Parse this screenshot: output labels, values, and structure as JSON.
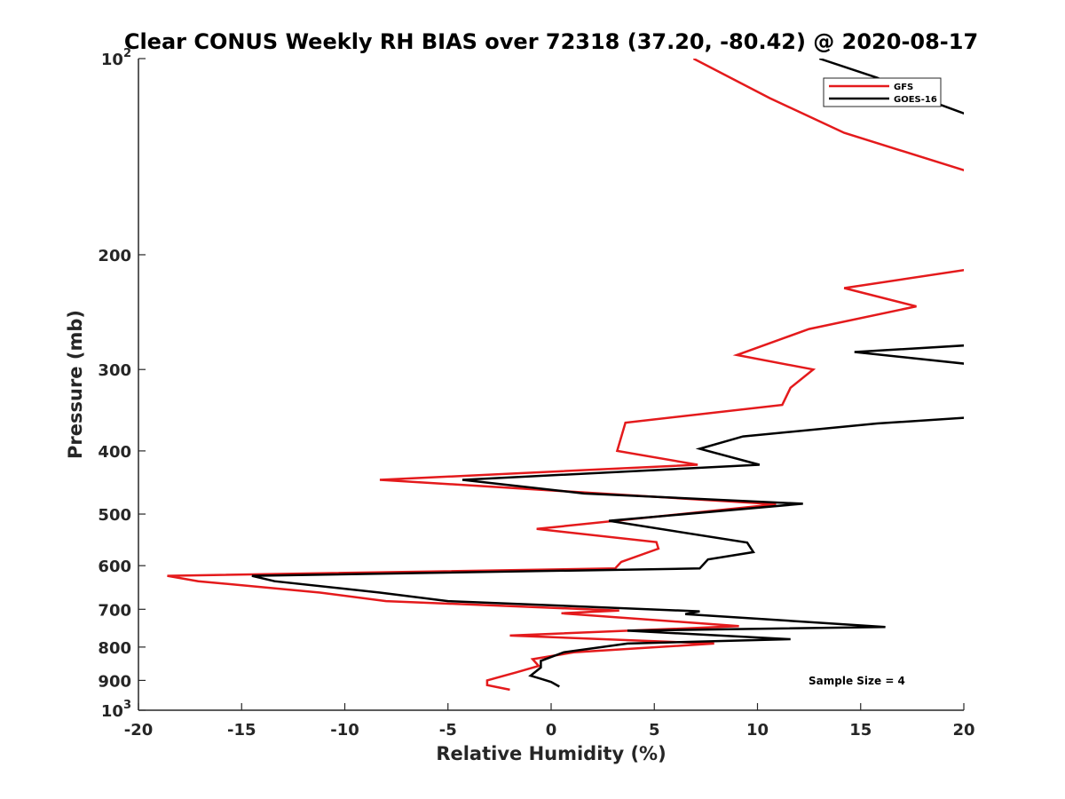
{
  "chart_data": {
    "type": "line",
    "title": "Clear CONUS Weekly RH BIAS over 72318 (37.20, -80.42) @ 2020-08-17",
    "xlabel": "Relative Humidity (%)",
    "ylabel": "Pressure (mb)",
    "xlim": [
      -20,
      20
    ],
    "ylim": [
      100,
      1000
    ],
    "y_scale": "log",
    "y_reversed": true,
    "x_ticks": [
      {
        "value": -20,
        "label": "-20"
      },
      {
        "value": -15,
        "label": "-15"
      },
      {
        "value": -10,
        "label": "-10"
      },
      {
        "value": -5,
        "label": "-5"
      },
      {
        "value": 0,
        "label": "0"
      },
      {
        "value": 5,
        "label": "5"
      },
      {
        "value": 10,
        "label": "10"
      },
      {
        "value": 15,
        "label": "15"
      },
      {
        "value": 20,
        "label": "20"
      }
    ],
    "y_ticks": [
      {
        "value": 100,
        "base": "10",
        "exp": "2"
      },
      {
        "value": 200,
        "label": "200"
      },
      {
        "value": 300,
        "label": "300"
      },
      {
        "value": 400,
        "label": "400"
      },
      {
        "value": 500,
        "label": "500"
      },
      {
        "value": 600,
        "label": "600"
      },
      {
        "value": 700,
        "label": "700"
      },
      {
        "value": 800,
        "label": "800"
      },
      {
        "value": 900,
        "label": "900"
      },
      {
        "value": 1000,
        "base": "10",
        "exp": "3"
      }
    ],
    "grid": false,
    "legend_position": "top-right",
    "annotation": "Sample Size = 4",
    "series": [
      {
        "name": "GFS",
        "color": "#e41a1c",
        "points": [
          [
            6.9,
            100
          ],
          [
            10.6,
            115
          ],
          [
            14.2,
            130
          ],
          [
            20.5,
            150
          ],
          [
            20.5,
            210
          ],
          [
            14.2,
            225
          ],
          [
            17.7,
            240
          ],
          [
            12.5,
            260
          ],
          [
            9.0,
            285
          ],
          [
            12.7,
            300
          ],
          [
            11.6,
            320
          ],
          [
            11.2,
            340
          ],
          [
            3.6,
            362
          ],
          [
            3.2,
            400
          ],
          [
            7.1,
            420
          ],
          [
            -8.3,
            443
          ],
          [
            10.9,
            483
          ],
          [
            -0.7,
            527
          ],
          [
            5.1,
            552
          ],
          [
            5.2,
            565
          ],
          [
            3.4,
            592
          ],
          [
            3.1,
            606
          ],
          [
            -18.6,
            622
          ],
          [
            -17.1,
            634
          ],
          [
            -11.2,
            660
          ],
          [
            -8.0,
            680
          ],
          [
            3.3,
            703
          ],
          [
            0.5,
            710
          ],
          [
            9.1,
            743
          ],
          [
            -2.0,
            768
          ],
          [
            7.9,
            790
          ],
          [
            1.1,
            815
          ],
          [
            -0.9,
            835
          ],
          [
            -0.6,
            855
          ],
          [
            -1.7,
            875
          ],
          [
            -3.1,
            900
          ],
          [
            -3.1,
            915
          ],
          [
            -2.0,
            930
          ]
        ]
      },
      {
        "name": "GOES-16",
        "color": "#000000",
        "points": [
          [
            13.0,
            100
          ],
          [
            15.8,
            107
          ],
          [
            18.0,
            115
          ],
          [
            20.5,
            123
          ],
          [
            20.5,
            275
          ],
          [
            14.7,
            282
          ],
          [
            20.5,
            295
          ],
          [
            20.5,
            355
          ],
          [
            15.8,
            363
          ],
          [
            9.3,
            380
          ],
          [
            7.2,
            397
          ],
          [
            10.1,
            420
          ],
          [
            -4.3,
            443
          ],
          [
            1.6,
            465
          ],
          [
            12.2,
            482
          ],
          [
            2.8,
            512
          ],
          [
            9.5,
            553
          ],
          [
            9.8,
            572
          ],
          [
            7.6,
            587
          ],
          [
            7.2,
            606
          ],
          [
            -14.5,
            622
          ],
          [
            -13.4,
            634
          ],
          [
            -8.3,
            660
          ],
          [
            -5.0,
            680
          ],
          [
            7.2,
            705
          ],
          [
            6.5,
            712
          ],
          [
            16.2,
            745
          ],
          [
            3.7,
            755
          ],
          [
            11.6,
            778
          ],
          [
            3.7,
            790
          ],
          [
            0.6,
            815
          ],
          [
            -0.5,
            840
          ],
          [
            -0.5,
            860
          ],
          [
            -1.0,
            885
          ],
          [
            -0.5,
            895
          ],
          [
            0.0,
            905
          ],
          [
            0.4,
            920
          ]
        ]
      }
    ]
  }
}
